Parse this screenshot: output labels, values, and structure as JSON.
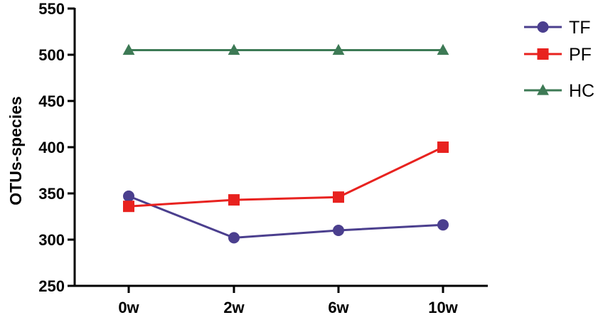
{
  "chart_data": {
    "type": "line",
    "title": "",
    "xlabel": "",
    "ylabel": "OTUs-species",
    "categories": [
      "0w",
      "2w",
      "6w",
      "10w"
    ],
    "ylim": [
      250,
      550
    ],
    "yticks": [
      250,
      300,
      350,
      400,
      450,
      500,
      550
    ],
    "grid": false,
    "legend_position": "top-right",
    "series": [
      {
        "name": "TF",
        "marker": "circle",
        "color": "#4b3f8e",
        "values": [
          347,
          302,
          310,
          316
        ]
      },
      {
        "name": "PF",
        "marker": "square",
        "color": "#e8221f",
        "values": [
          336,
          343,
          346,
          400
        ]
      },
      {
        "name": "HC",
        "marker": "triangle",
        "color": "#3d7a55",
        "values": [
          505,
          505,
          505,
          505
        ]
      }
    ]
  }
}
